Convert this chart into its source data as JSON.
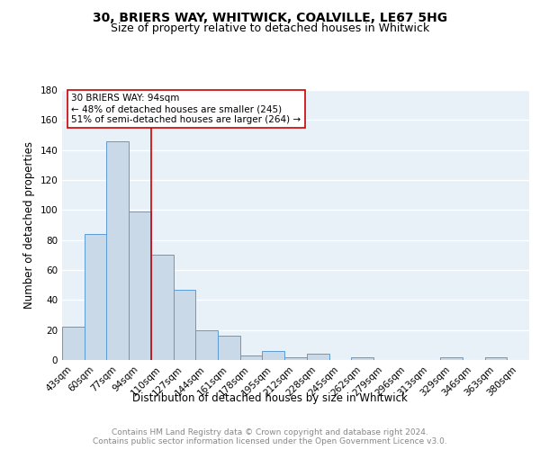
{
  "title1": "30, BRIERS WAY, WHITWICK, COALVILLE, LE67 5HG",
  "title2": "Size of property relative to detached houses in Whitwick",
  "xlabel": "Distribution of detached houses by size in Whitwick",
  "ylabel": "Number of detached properties",
  "bar_labels": [
    "43sqm",
    "60sqm",
    "77sqm",
    "94sqm",
    "110sqm",
    "127sqm",
    "144sqm",
    "161sqm",
    "178sqm",
    "195sqm",
    "212sqm",
    "228sqm",
    "245sqm",
    "262sqm",
    "279sqm",
    "296sqm",
    "313sqm",
    "329sqm",
    "346sqm",
    "363sqm",
    "380sqm"
  ],
  "bar_values": [
    22,
    84,
    146,
    99,
    70,
    47,
    20,
    16,
    3,
    6,
    2,
    4,
    0,
    2,
    0,
    0,
    0,
    2,
    0,
    2,
    0
  ],
  "bar_color": "#c9d9e8",
  "bar_edge_color": "#5b9bd5",
  "background_color": "#e8f0f8",
  "grid_color": "#ffffff",
  "property_line_x": 3,
  "property_line_color": "#cc0000",
  "annotation_line1": "30 BRIERS WAY: 94sqm",
  "annotation_line2": "← 48% of detached houses are smaller (245)",
  "annotation_line3": "51% of semi-detached houses are larger (264) →",
  "annotation_box_color": "#ffffff",
  "annotation_box_edge": "#cc0000",
  "ylim": [
    0,
    180
  ],
  "yticks": [
    0,
    20,
    40,
    60,
    80,
    100,
    120,
    140,
    160,
    180
  ],
  "footer": "Contains HM Land Registry data © Crown copyright and database right 2024.\nContains public sector information licensed under the Open Government Licence v3.0.",
  "title1_fontsize": 10,
  "title2_fontsize": 9,
  "xlabel_fontsize": 8.5,
  "ylabel_fontsize": 8.5,
  "tick_fontsize": 7.5,
  "footer_fontsize": 6.5,
  "annotation_fontsize": 7.5
}
